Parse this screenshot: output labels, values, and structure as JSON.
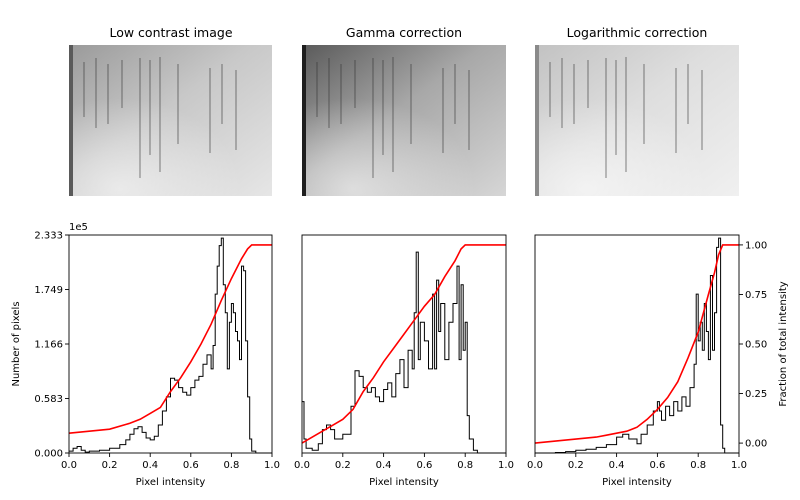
{
  "panel_titles": [
    "Low contrast image",
    "Gamma correction",
    "Logarithmic correction"
  ],
  "chart_data": [
    {
      "type": "area",
      "title": "",
      "xlabel": "Pixel intensity",
      "ylabel": "Number of pixels",
      "ylabel_right": "",
      "xlim": [
        0,
        1
      ],
      "ylim": [
        0,
        233300
      ],
      "xticks": [
        "0.0",
        "0.2",
        "0.4",
        "0.6",
        "0.8",
        "1.0"
      ],
      "yticks": [
        "0.000",
        "0.583",
        "1.166",
        "1.749",
        "2.333"
      ],
      "y_offset_label": "1e5",
      "series": [
        {
          "x": [
            0,
            0.02,
            0.04,
            0.06,
            0.08,
            0.1,
            0.15,
            0.2,
            0.25,
            0.28,
            0.3,
            0.32,
            0.34,
            0.36,
            0.38,
            0.4,
            0.42,
            0.44,
            0.46,
            0.48,
            0.5,
            0.52,
            0.54,
            0.56,
            0.58,
            0.6,
            0.62,
            0.64,
            0.66,
            0.68,
            0.7,
            0.71,
            0.72,
            0.73,
            0.74,
            0.75,
            0.76,
            0.77,
            0.78,
            0.79,
            0.8,
            0.81,
            0.82,
            0.83,
            0.84,
            0.85,
            0.86,
            0.87,
            0.88,
            0.89,
            0.9,
            0.92,
            0.94,
            0.96,
            0.98,
            1.0
          ],
          "values": [
            2000,
            5000,
            7000,
            3000,
            1000,
            2000,
            3000,
            5000,
            9000,
            14000,
            20000,
            26000,
            28000,
            22000,
            16000,
            14000,
            18000,
            30000,
            45000,
            60000,
            80000,
            78000,
            70000,
            65000,
            62000,
            70000,
            78000,
            82000,
            95000,
            105000,
            90000,
            115000,
            170000,
            200000,
            222000,
            230000,
            180000,
            150000,
            90000,
            140000,
            160000,
            150000,
            130000,
            120000,
            100000,
            200000,
            195000,
            120000,
            60000,
            15000,
            2000,
            0,
            0,
            0,
            0,
            0
          ]
        },
        {
          "name": "",
          "x": [
            0,
            0.1,
            0.2,
            0.3,
            0.35,
            0.4,
            0.45,
            0.5,
            0.55,
            0.6,
            0.65,
            0.7,
            0.75,
            0.8,
            0.85,
            0.88,
            0.9,
            1.0
          ],
          "values": [
            0.05,
            0.06,
            0.07,
            0.1,
            0.12,
            0.15,
            0.18,
            0.26,
            0.33,
            0.41,
            0.5,
            0.6,
            0.72,
            0.83,
            0.93,
            0.98,
            1.0,
            1.0
          ]
        }
      ]
    },
    {
      "type": "area",
      "title": "",
      "xlabel": "Pixel intensity",
      "ylabel": "",
      "ylabel_right": "",
      "xlim": [
        0,
        1
      ],
      "ylim": [
        0,
        233300
      ],
      "xticks": [
        "0.0",
        "0.2",
        "0.4",
        "0.6",
        "0.8",
        "1.0"
      ],
      "yticks": [],
      "y_offset_label": "",
      "series": [
        {
          "x": [
            0,
            0.01,
            0.02,
            0.05,
            0.08,
            0.1,
            0.12,
            0.14,
            0.16,
            0.2,
            0.24,
            0.26,
            0.28,
            0.3,
            0.32,
            0.34,
            0.36,
            0.38,
            0.4,
            0.42,
            0.44,
            0.46,
            0.48,
            0.5,
            0.52,
            0.54,
            0.55,
            0.56,
            0.57,
            0.58,
            0.6,
            0.62,
            0.64,
            0.65,
            0.66,
            0.67,
            0.68,
            0.7,
            0.72,
            0.74,
            0.76,
            0.77,
            0.78,
            0.79,
            0.8,
            0.81,
            0.82,
            0.84,
            0.86,
            0.88,
            0.9,
            1.0
          ],
          "values": [
            55000,
            15000,
            5000,
            3000,
            10000,
            25000,
            30000,
            25000,
            15000,
            20000,
            50000,
            88000,
            82000,
            70000,
            65000,
            70000,
            60000,
            55000,
            68000,
            75000,
            60000,
            85000,
            100000,
            70000,
            110000,
            90000,
            150000,
            215000,
            100000,
            140000,
            120000,
            90000,
            170000,
            90000,
            185000,
            130000,
            160000,
            100000,
            140000,
            160000,
            200000,
            100000,
            180000,
            110000,
            140000,
            40000,
            15000,
            3000,
            0,
            0,
            0,
            0
          ]
        },
        {
          "name": "",
          "x": [
            0,
            0.1,
            0.15,
            0.2,
            0.25,
            0.3,
            0.35,
            0.4,
            0.45,
            0.5,
            0.55,
            0.6,
            0.65,
            0.7,
            0.75,
            0.78,
            0.8,
            0.85,
            1.0
          ],
          "values": [
            0.0,
            0.06,
            0.09,
            0.12,
            0.17,
            0.26,
            0.33,
            0.41,
            0.48,
            0.55,
            0.62,
            0.69,
            0.75,
            0.84,
            0.92,
            0.98,
            1.0,
            1.0,
            1.0
          ]
        }
      ]
    },
    {
      "type": "area",
      "title": "",
      "xlabel": "Pixel intensity",
      "ylabel": "",
      "ylabel_right": "Fraction of total intensity",
      "xlim": [
        0,
        1
      ],
      "ylim": [
        0,
        233300
      ],
      "xticks": [
        "0.0",
        "0.2",
        "0.4",
        "0.6",
        "0.8",
        "1.0"
      ],
      "yticks": [],
      "yticks_right": [
        "0.00",
        "0.25",
        "0.50",
        "0.75",
        "1.00"
      ],
      "y_offset_label": "",
      "series": [
        {
          "x": [
            0,
            0.05,
            0.1,
            0.15,
            0.2,
            0.25,
            0.3,
            0.35,
            0.4,
            0.43,
            0.46,
            0.5,
            0.52,
            0.55,
            0.58,
            0.6,
            0.61,
            0.62,
            0.64,
            0.66,
            0.68,
            0.7,
            0.72,
            0.74,
            0.76,
            0.78,
            0.79,
            0.8,
            0.81,
            0.82,
            0.83,
            0.84,
            0.85,
            0.86,
            0.87,
            0.88,
            0.89,
            0.9,
            0.91,
            0.92,
            0.93,
            0.95,
            1.0
          ],
          "values": [
            0,
            0,
            500,
            1500,
            3000,
            4000,
            6000,
            9000,
            17000,
            20000,
            15000,
            10000,
            20000,
            30000,
            45000,
            55000,
            45000,
            35000,
            50000,
            40000,
            55000,
            45000,
            60000,
            50000,
            70000,
            95000,
            170000,
            120000,
            140000,
            110000,
            160000,
            130000,
            100000,
            190000,
            110000,
            150000,
            220000,
            230000,
            30000,
            5000,
            0,
            0,
            0
          ]
        },
        {
          "name": "",
          "x": [
            0,
            0.1,
            0.2,
            0.3,
            0.35,
            0.4,
            0.45,
            0.5,
            0.55,
            0.6,
            0.65,
            0.7,
            0.75,
            0.8,
            0.85,
            0.88,
            0.9,
            0.92,
            1.0
          ],
          "values": [
            0.0,
            0.01,
            0.02,
            0.03,
            0.04,
            0.05,
            0.06,
            0.08,
            0.12,
            0.17,
            0.23,
            0.31,
            0.43,
            0.56,
            0.75,
            0.86,
            0.95,
            1.0,
            1.0
          ]
        }
      ]
    }
  ]
}
